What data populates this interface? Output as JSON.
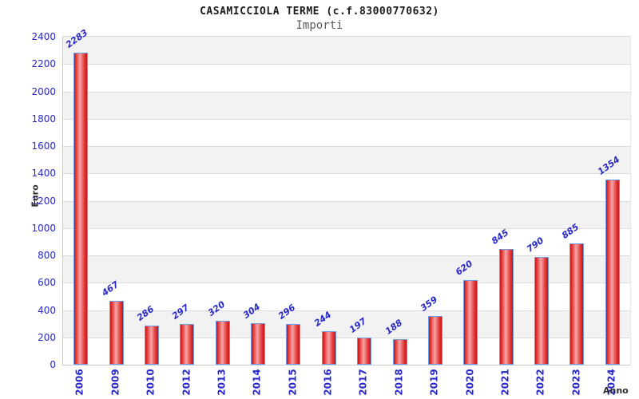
{
  "header": {
    "title": "CASAMICCIOLA TERME (c.f.83000770632)",
    "subtitle": "Importi"
  },
  "chart_data": {
    "type": "bar",
    "title": "CASAMICCIOLA TERME (c.f.83000770632)",
    "subtitle": "Importi",
    "xlabel": "Anno",
    "ylabel": "Euro",
    "categories": [
      "2006",
      "2009",
      "2010",
      "2012",
      "2013",
      "2014",
      "2015",
      "2016",
      "2017",
      "2018",
      "2019",
      "2020",
      "2021",
      "2022",
      "2023",
      "2024"
    ],
    "values": [
      2283,
      467,
      286,
      297,
      320,
      304,
      296,
      244,
      197,
      188,
      359,
      620,
      845,
      790,
      885,
      1354
    ],
    "ylim": [
      0,
      2400
    ],
    "ytick_step": 200,
    "grid": "horizontal gridlines every 200 with alternating background bands",
    "legend": "none",
    "bar_labels_rotated": true,
    "colors": {
      "bar_dark": "#c41414",
      "bar_mid": "#e84444",
      "bar_light": "#f4a6a6",
      "bar_border": "#6f9ce8",
      "label_blue": "#2828c8",
      "gridline": "#dcdcdc",
      "band_gray": "#f2f2f2",
      "band_white": "#ffffff",
      "title_color": "#1b1b1b",
      "subtitle_color": "#5a5a5a",
      "axis_title_color": "#2e2e2e"
    }
  }
}
